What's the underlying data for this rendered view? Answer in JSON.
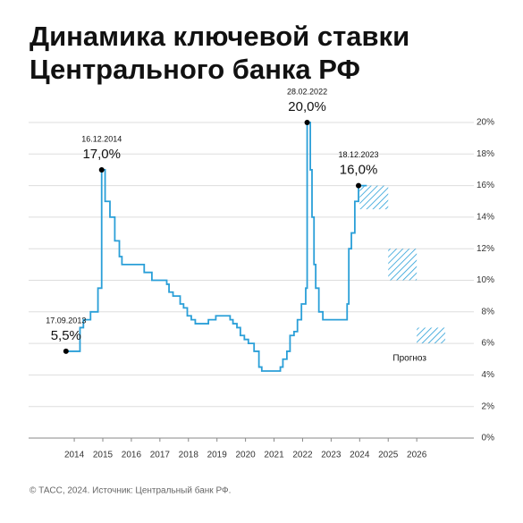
{
  "chart_data": {
    "type": "step-line",
    "title_lines": [
      "Динамика ключевой ставки",
      "Центрального банка РФ"
    ],
    "source": "© ТАСС, 2024. Источник: Центральный банк РФ.",
    "color": "#2a9fd8",
    "x": [
      2013.71,
      2014.2,
      2014.32,
      2014.57,
      2014.83,
      2014.96,
      2015.08,
      2015.25,
      2015.42,
      2015.58,
      2015.67,
      2016.45,
      2016.72,
      2017.24,
      2017.32,
      2017.46,
      2017.71,
      2017.83,
      2017.96,
      2018.1,
      2018.24,
      2018.7,
      2018.96,
      2019.46,
      2019.56,
      2019.7,
      2019.82,
      2019.96,
      2020.1,
      2020.3,
      2020.47,
      2020.57,
      2021.22,
      2021.31,
      2021.45,
      2021.56,
      2021.7,
      2021.82,
      2021.96,
      2022.11,
      2022.16,
      2022.27,
      2022.33,
      2022.4,
      2022.46,
      2022.57,
      2022.71,
      2023.56,
      2023.62,
      2023.71,
      2023.83,
      2023.96,
      2024.25
    ],
    "values": [
      5.5,
      7,
      7.5,
      8,
      9.5,
      17,
      15,
      14,
      12.5,
      11.5,
      11,
      10.5,
      10,
      9.75,
      9.25,
      9,
      8.5,
      8.25,
      7.75,
      7.5,
      7.25,
      7.5,
      7.75,
      7.5,
      7.25,
      7,
      6.5,
      6.25,
      6,
      5.5,
      4.5,
      4.25,
      4.5,
      5,
      5.5,
      6.5,
      6.75,
      7.5,
      8.5,
      9.5,
      20,
      17,
      14,
      11,
      9.5,
      8,
      7.5,
      8.5,
      12,
      13,
      15,
      16,
      16
    ],
    "annotations": [
      {
        "x": 2013.71,
        "value": 5.5,
        "date": "17.09.2013",
        "label": "5,5%"
      },
      {
        "x": 2014.96,
        "value": 17,
        "date": "16.12.2014",
        "label": "17,0%"
      },
      {
        "x": 2022.16,
        "value": 20,
        "date": "28.02.2022",
        "label": "20,0%"
      },
      {
        "x": 2023.96,
        "value": 16,
        "date": "18.12.2023",
        "label": "16,0%"
      }
    ],
    "forecast": {
      "label": "Прогноз",
      "ranges": [
        {
          "year": 2024,
          "low": 14.5,
          "high": 16
        },
        {
          "year": 2025,
          "low": 10,
          "high": 12
        },
        {
          "year": 2026,
          "low": 6,
          "high": 7
        }
      ]
    },
    "xlim": [
      2012.4,
      2028
    ],
    "xticks": [
      2014,
      2015,
      2016,
      2017,
      2018,
      2019,
      2020,
      2021,
      2022,
      2023,
      2024,
      2025,
      2026
    ],
    "ylim": [
      0,
      20
    ],
    "yticks": [
      {
        "value": 0,
        "label": "0%"
      },
      {
        "value": 2,
        "label": "2%"
      },
      {
        "value": 4,
        "label": "4%"
      },
      {
        "value": 6,
        "label": "6%"
      },
      {
        "value": 8,
        "label": "8%"
      },
      {
        "value": 10,
        "label": "10%"
      },
      {
        "value": 12,
        "label": "12%"
      },
      {
        "value": 14,
        "label": "14%"
      },
      {
        "value": 16,
        "label": "16%"
      },
      {
        "value": 18,
        "label": "18%"
      },
      {
        "value": 20,
        "label": "20%"
      }
    ],
    "grid": true
  }
}
